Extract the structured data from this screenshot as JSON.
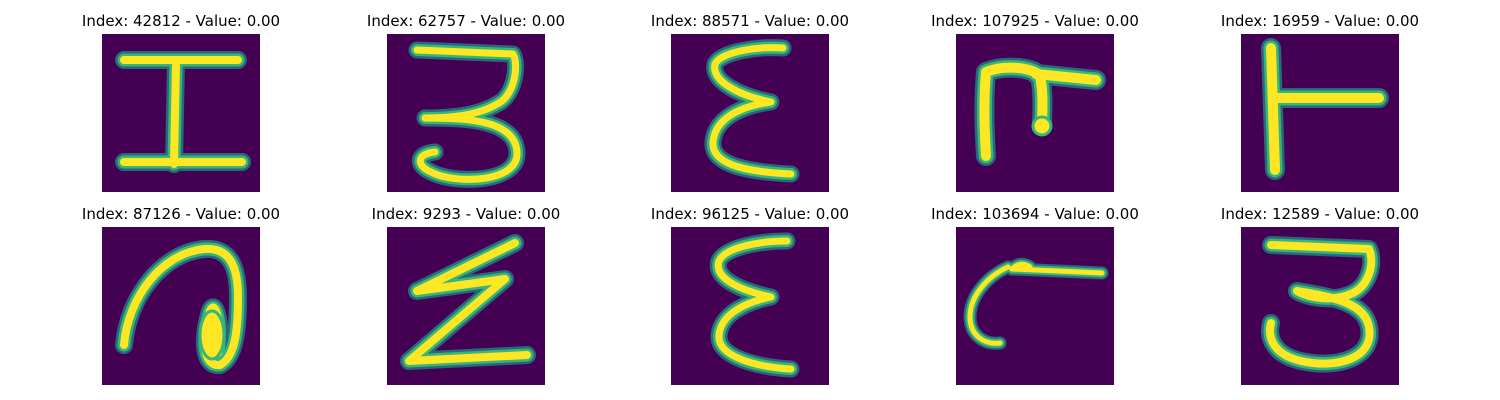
{
  "colors": {
    "background": "#440154",
    "glyph_core": "#fde725",
    "glyph_edge": "#35b779",
    "glyph_halo": "#21918c"
  },
  "panels": [
    {
      "title": "Index: 42812 - Value: 0.00",
      "glyph": "I-beam"
    },
    {
      "title": "Index: 62757 - Value: 0.00",
      "glyph": "digit-3"
    },
    {
      "title": "Index: 88571 - Value: 0.00",
      "glyph": "epsilon-like"
    },
    {
      "title": "Index: 107925 - Value: 0.00",
      "glyph": "hook-F"
    },
    {
      "title": "Index: 16959 - Value: 0.00",
      "glyph": "T-rotated"
    },
    {
      "title": "Index: 87126 - Value: 0.00",
      "glyph": "loop-a"
    },
    {
      "title": "Index: 9293 - Value: 0.00",
      "glyph": "zigzag-Z"
    },
    {
      "title": "Index: 96125 - Value: 0.00",
      "glyph": "epsilon-like"
    },
    {
      "title": "Index: 103694 - Value: 0.00",
      "glyph": "c-with-bar"
    },
    {
      "title": "Index: 12589 - Value: 0.00",
      "glyph": "digit-3-curl"
    }
  ]
}
